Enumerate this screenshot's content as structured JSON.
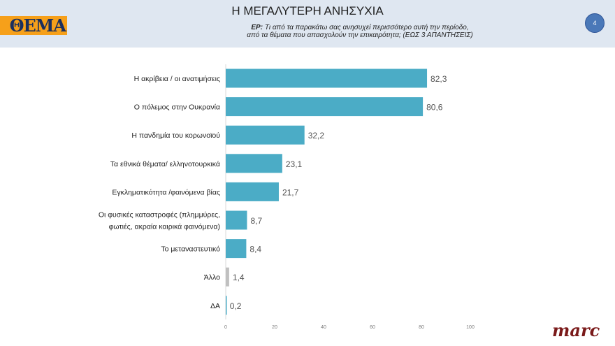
{
  "header": {
    "logo": "ΘΕΜΑ",
    "title": "Η ΜΕΓΑΛΥΤΕΡΗ ΑΝΗΣΥΧΙΑ",
    "subtitle_prefix": "ΕΡ:",
    "subtitle_line1": "Τι από τα παρακάτω σας ανησυχεί περισσότερο αυτή την περίοδο,",
    "subtitle_line2": "από τα θέματα που απασχολούν την επικαιρότητα; (ΕΩΣ 3 ΑΠΑΝΤΗΣΕΙΣ)",
    "page_number": "4"
  },
  "footer": {
    "brand": "marc"
  },
  "chart_data": {
    "type": "bar",
    "orientation": "horizontal",
    "categories": [
      [
        "Η ακρίβεια / οι ανατιμήσεις"
      ],
      [
        "Ο πόλεμος στην Ουκρανία"
      ],
      [
        "Η πανδημία του κορωνοϊού"
      ],
      [
        "Τα εθνικά θέματα/ ελληνοτουρκικά"
      ],
      [
        "Εγκληματικότητα /φαινόμενα βίας"
      ],
      [
        "Οι φυσικές καταστροφές (πλημμύρες,",
        "φωτιές, ακραία καιρικά φαινόμενα)"
      ],
      [
        "Το μεταναστευτικό"
      ],
      [
        "Άλλο"
      ],
      [
        "ΔΑ"
      ]
    ],
    "values": [
      82.3,
      80.6,
      32.2,
      23.1,
      21.7,
      8.7,
      8.4,
      1.4,
      0.2
    ],
    "value_labels": [
      "82,3",
      "80,6",
      "32,2",
      "23,1",
      "21,7",
      "8,7",
      "8,4",
      "1,4",
      "0,2"
    ],
    "bar_colors": [
      "#4bacc6",
      "#4bacc6",
      "#4bacc6",
      "#4bacc6",
      "#4bacc6",
      "#4bacc6",
      "#4bacc6",
      "#c0c0c0",
      "#4bacc6"
    ],
    "xlim": [
      0,
      100
    ],
    "xticks": [
      "0",
      "20",
      "40",
      "60",
      "80",
      "100"
    ],
    "grid": false,
    "legend": "none"
  }
}
